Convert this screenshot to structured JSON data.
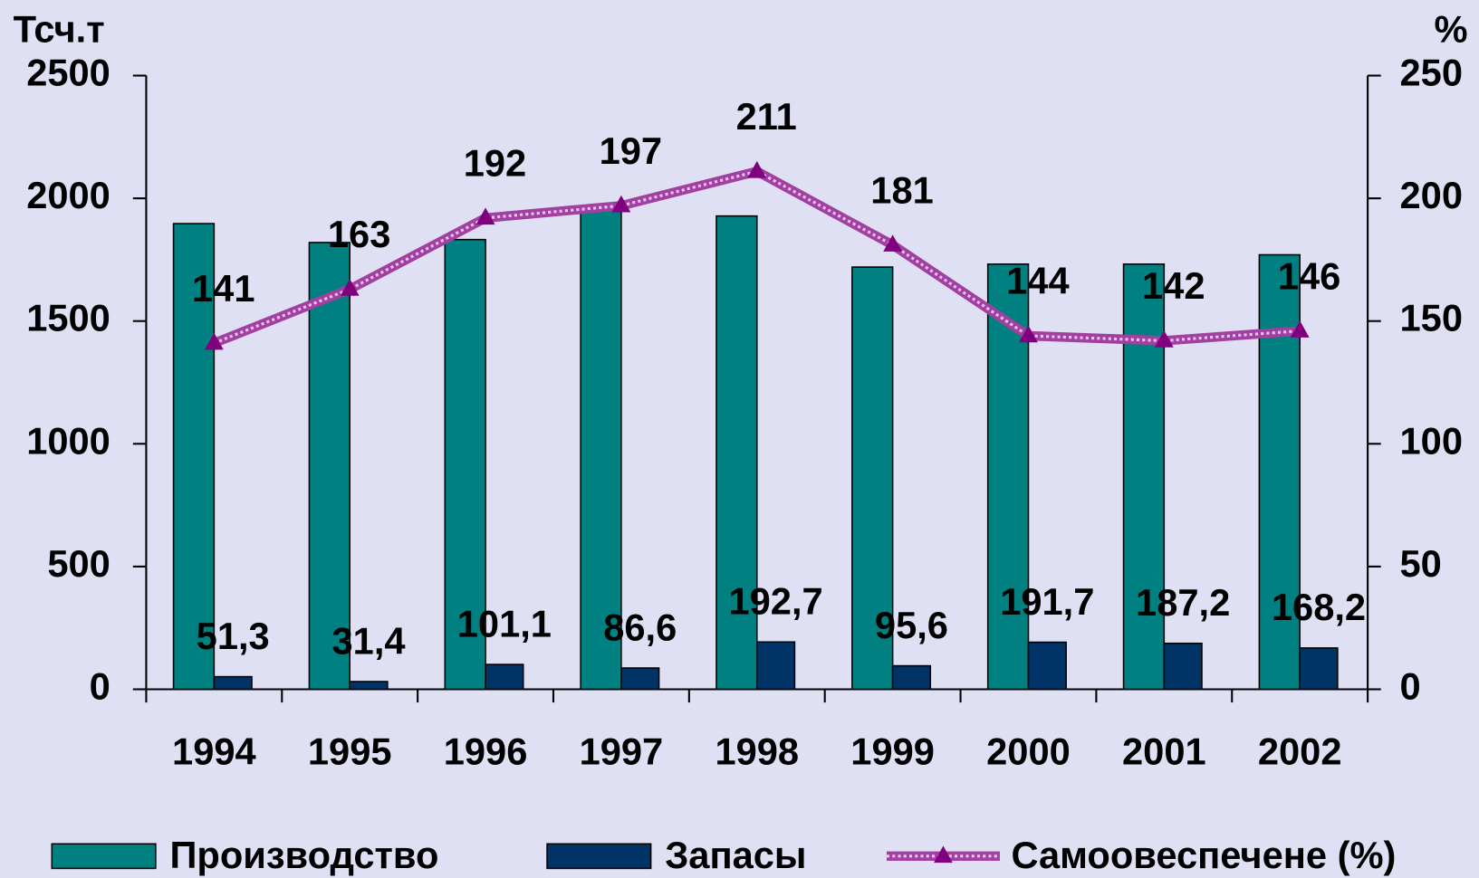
{
  "chart_data": {
    "type": "bar",
    "y_label": "Тсч.т",
    "y2_label": "%",
    "categories": [
      "1994",
      "1995",
      "1996",
      "1997",
      "1998",
      "1999",
      "2000",
      "2001",
      "2002"
    ],
    "series": [
      {
        "name": "Производство",
        "type": "bar",
        "color": "#008080",
        "values": [
          1897,
          1820,
          1832,
          1955,
          1928,
          1720,
          1732,
          1732,
          1770
        ]
      },
      {
        "name": "Запасы",
        "type": "bar",
        "color": "#003366",
        "values": [
          51.3,
          31.4,
          101.1,
          86.6,
          192.7,
          95.6,
          191.7,
          187.2,
          168.2
        ],
        "value_labels": [
          "51,3",
          "31,4",
          "101,1",
          "86,6",
          "192,7",
          "95,6",
          "191,7",
          "187,2",
          "168,2"
        ]
      },
      {
        "name": "Самоовеспечене (%)",
        "type": "line",
        "axis": "y2",
        "color": "#a040a0",
        "values": [
          141,
          163,
          192,
          197,
          211,
          181,
          144,
          142,
          146
        ]
      }
    ],
    "ylim": [
      0,
      2500
    ],
    "yticks": [
      0,
      500,
      1000,
      1500,
      2000,
      2500
    ],
    "y2lim": [
      0,
      250
    ],
    "y2ticks": [
      0,
      50,
      100,
      150,
      200,
      250
    ],
    "legend": "bottom"
  }
}
